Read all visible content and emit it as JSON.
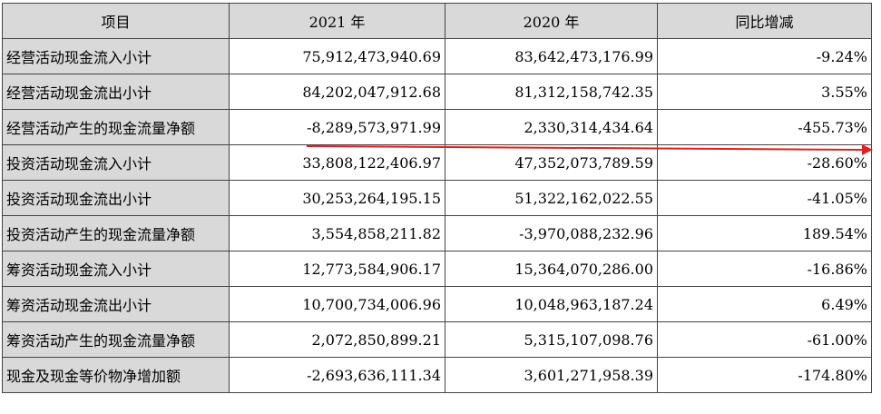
{
  "table": {
    "headers": [
      "项目",
      "2021 年",
      "2020 年",
      "同比增减"
    ],
    "rows": [
      {
        "item": "经营活动现金流入小计",
        "y2021": "75,912,473,940.69",
        "y2020": "83,642,473,176.99",
        "change": "-9.24%"
      },
      {
        "item": "经营活动现金流出小计",
        "y2021": "84,202,047,912.68",
        "y2020": "81,312,158,742.35",
        "change": "3.55%"
      },
      {
        "item": "经营活动产生的现金流量净额",
        "y2021": "-8,289,573,971.99",
        "y2020": "2,330,314,434.64",
        "change": "-455.73%"
      },
      {
        "item": "投资活动现金流入小计",
        "y2021": "33,808,122,406.97",
        "y2020": "47,352,073,789.59",
        "change": "-28.60%"
      },
      {
        "item": "投资活动现金流出小计",
        "y2021": "30,253,264,195.15",
        "y2020": "51,322,162,022.55",
        "change": "-41.05%"
      },
      {
        "item": "投资活动产生的现金流量净额",
        "y2021": "3,554,858,211.82",
        "y2020": "-3,970,088,232.96",
        "change": "189.54%"
      },
      {
        "item": "筹资活动现金流入小计",
        "y2021": "12,773,584,906.17",
        "y2020": "15,364,070,286.00",
        "change": "-16.86%"
      },
      {
        "item": "筹资活动现金流出小计",
        "y2021": "10,700,734,006.96",
        "y2020": "10,048,963,187.24",
        "change": "6.49%"
      },
      {
        "item": "筹资活动产生的现金流量净额",
        "y2021": "2,072,850,899.21",
        "y2020": "5,315,107,098.76",
        "change": "-61.00%"
      },
      {
        "item": "现金及现金等价物净增加额",
        "y2021": "-2,693,636,111.34",
        "y2020": "3,601,271,958.39",
        "change": "-174.80%"
      }
    ]
  },
  "annotation": {
    "color": "#e02020"
  }
}
